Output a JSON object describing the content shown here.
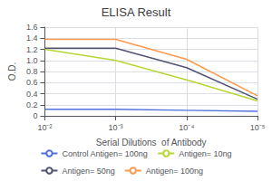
{
  "chart_data": {
    "type": "line",
    "title": "ELISA Result",
    "xlabel": "Serial Dilutions  of Antibody",
    "ylabel": "O.D.",
    "x": [
      -2,
      -3,
      -4,
      -5
    ],
    "series": [
      {
        "name": "Control Antigen= 100ng",
        "values": [
          0.12,
          0.12,
          0.1,
          0.08
        ]
      },
      {
        "name": "Antigen= 10ng",
        "values": [
          1.2,
          1.0,
          0.65,
          0.27
        ]
      },
      {
        "name": "Antigen= 50ng",
        "values": [
          1.22,
          1.22,
          0.87,
          0.3
        ]
      },
      {
        "name": "Antigen= 100ng",
        "values": [
          1.38,
          1.38,
          1.02,
          0.36
        ]
      }
    ],
    "xlim": [
      -2,
      -5
    ],
    "xticks": [
      {
        "value": -2,
        "label": "10⁻²"
      },
      {
        "value": -3,
        "label": "10⁻³"
      },
      {
        "value": -4,
        "label": "10⁻⁴"
      },
      {
        "value": -5,
        "label": "10⁻⁵"
      }
    ],
    "ylim": [
      0,
      1.6
    ],
    "yticks": [
      0,
      0.2,
      0.4,
      0.6,
      0.8,
      {
        "value": 1,
        "label": "1.0"
      },
      1.2,
      1.4,
      1.6
    ],
    "grid": true,
    "legend": "bottom"
  }
}
